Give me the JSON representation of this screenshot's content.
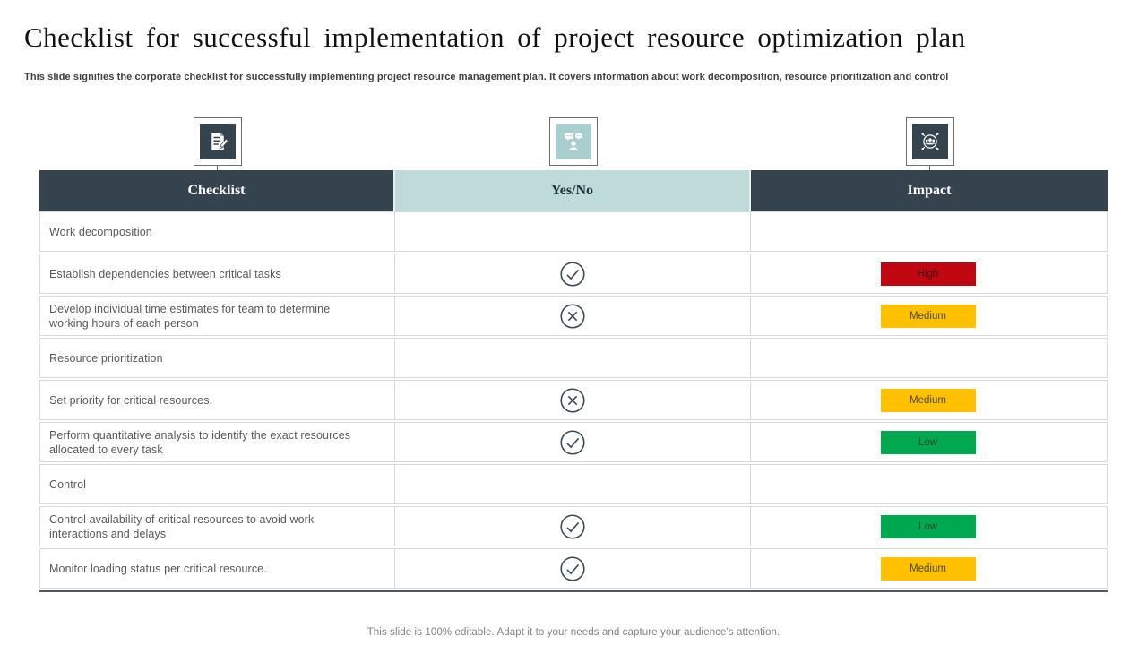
{
  "slide": {
    "title": "Checklist for successful implementation of project resource optimization plan",
    "subtitle": "This slide signifies the corporate checklist for successfully implementing project resource management plan. It covers information about work decomposition, resource prioritization and control",
    "footer": "This slide is 100% editable.  Adapt it to your needs and capture your audience's attention."
  },
  "colors": {
    "dark_slate": "#34434e",
    "light_teal": "#bedbd9",
    "icon_teal": "#a9cecd",
    "red": "#c00712",
    "amber": "#ffc000",
    "green": "#00a94f",
    "row_text": "#595959",
    "row_border": "#d9d9d9",
    "icon_stroke": "#3a4a55"
  },
  "icons": {
    "checklist": "document-pencil-icon",
    "yes_no": "person-chat-icon",
    "impact": "team-impact-icon",
    "yes_mark": "circle-check-icon",
    "no_mark": "circle-cross-icon"
  },
  "table": {
    "columns": [
      {
        "label": "Checklist"
      },
      {
        "label": "Yes/No"
      },
      {
        "label": "Impact"
      }
    ],
    "rows": [
      {
        "label": "Work decomposition",
        "status": "",
        "impact": ""
      },
      {
        "label": "Establish dependencies  between  critical tasks",
        "status": "yes",
        "impact": "High"
      },
      {
        "label": "Develop  individual  time  estimates for team to  determine working hours  of each  person",
        "status": "no",
        "impact": "Medium"
      },
      {
        "label": "Resource  prioritization",
        "status": "",
        "impact": ""
      },
      {
        "label": "Set priority  for critical  resources.",
        "status": "no",
        "impact": "Medium"
      },
      {
        "label": "Perform  quantitative  analysis  to identify  the  exact  resources allocated  to every  task",
        "status": "yes",
        "impact": "Low"
      },
      {
        "label": "Control",
        "status": "",
        "impact": ""
      },
      {
        "label": "Control  availability  of critical  resources  to avoid  work interactions  and delays",
        "status": "yes",
        "impact": "Low"
      },
      {
        "label": "Monitor  loading  status per  critical  resource.",
        "status": "yes",
        "impact": "Medium"
      }
    ]
  }
}
